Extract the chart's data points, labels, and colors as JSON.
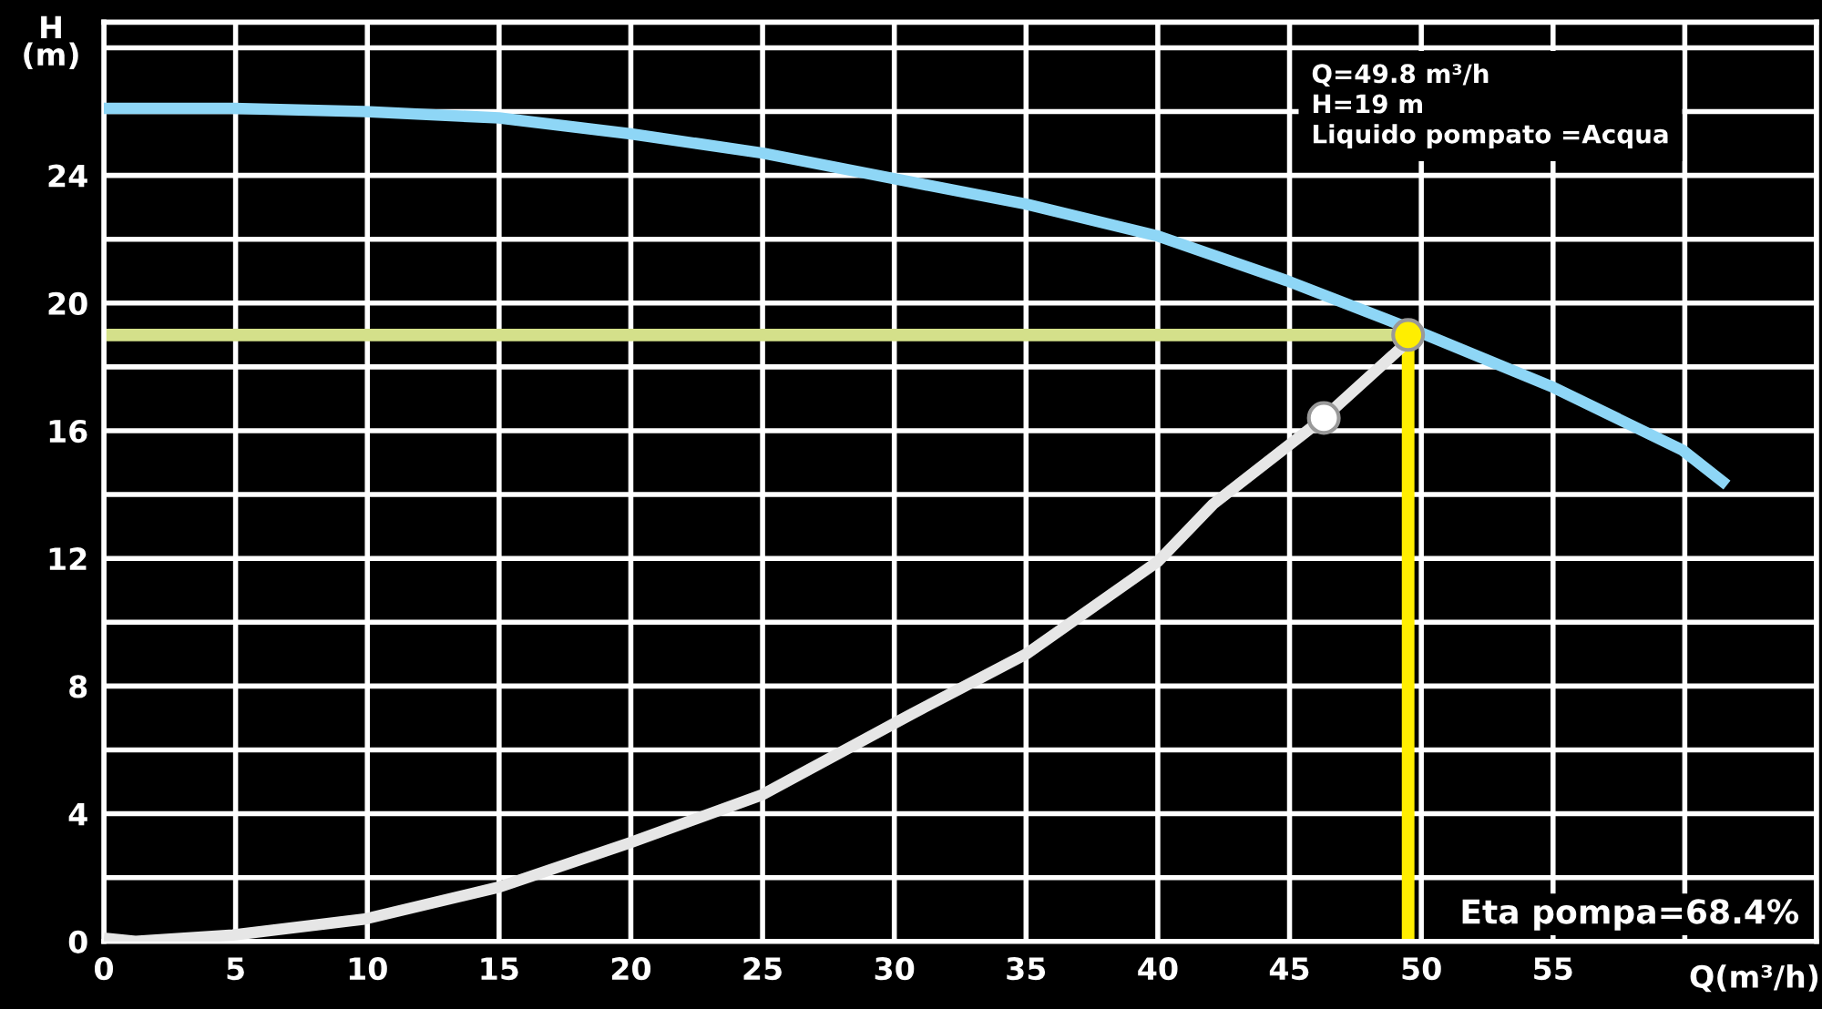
{
  "chart_data": {
    "type": "line",
    "xlabel": "Q(m³/h)",
    "ylabel": "H\n(m)",
    "xlim": [
      0,
      65
    ],
    "xticks": [
      0,
      5,
      10,
      15,
      20,
      25,
      30,
      35,
      40,
      45,
      50,
      55,
      {
        "value": 60,
        "label": null
      },
      {
        "value": 65,
        "label": null
      }
    ],
    "ylim": [
      0,
      28.8
    ],
    "yticks": [
      0,
      {
        "value": 2,
        "label": null
      },
      4,
      {
        "value": 6,
        "label": null
      },
      8,
      {
        "value": 10,
        "label": null
      },
      12,
      {
        "value": 14,
        "label": null
      },
      16,
      {
        "value": 18,
        "label": null
      },
      20,
      {
        "value": 22,
        "label": null
      },
      24,
      {
        "value": 26,
        "label": null
      },
      {
        "value": 28,
        "label": null
      }
    ],
    "grid": true,
    "marker": "none",
    "line_style": "solid",
    "series": [
      {
        "color": "#8ed6f6",
        "x": [
          0,
          4.9,
          9.9,
          15,
          20,
          25,
          30.6,
          35,
          40,
          44.9,
          49.9,
          54.9,
          59.9,
          61.6
        ],
        "values": [
          26.1,
          26.1,
          26.0,
          25.8,
          25.3,
          24.7,
          23.8,
          23.1,
          22.1,
          20.7,
          19.1,
          17.4,
          15.4,
          14.3
        ]
      },
      {
        "color": "#e6e6e6",
        "x": [
          0,
          1.2,
          4.9,
          9.9,
          15,
          20,
          25,
          30.6,
          35,
          40,
          42.1,
          46.3,
          49.5
        ],
        "values": [
          0.1,
          0,
          0.2,
          0.7,
          1.7,
          3.1,
          4.6,
          7.1,
          9.0,
          11.9,
          13.7,
          16.4,
          18.8
        ]
      },
      {
        "type": "scatter",
        "marker": "circle",
        "color": "#ffffff",
        "x": [
          46.3
        ],
        "values": [
          16.4
        ]
      },
      {
        "type": "scatter",
        "marker": "circle",
        "color": "#ffee00",
        "x": [
          49.5
        ],
        "values": [
          19
        ]
      }
    ],
    "ref_lines": [
      {
        "axis": "y",
        "value": 19,
        "color": "#d4e08a"
      },
      {
        "axis": "x",
        "value": 49.5,
        "color": "#ffee00"
      }
    ],
    "annotations": [
      "Q=49.8 m³/h\nH=19 m\nLiquido pompato =Acqua",
      "Eta pompa=68.4%"
    ]
  }
}
